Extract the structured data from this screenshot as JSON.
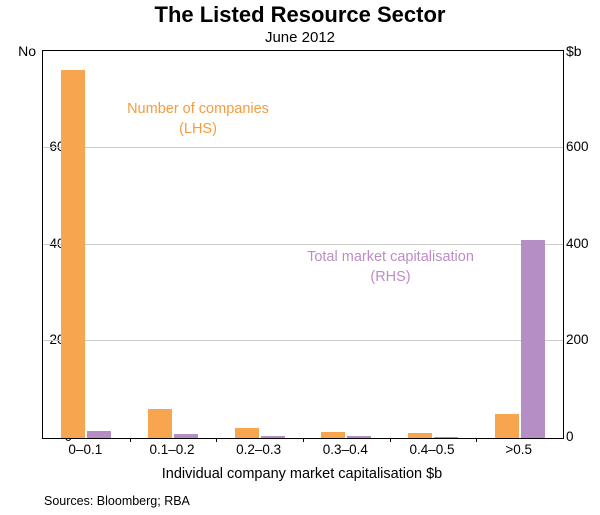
{
  "title": "The Listed Resource Sector",
  "subtitle": "June 2012",
  "left_axis_unit": "No",
  "right_axis_unit": "$b",
  "xlabel": "Individual company market capitalisation $b",
  "sources": "Sources: Bloomberg; RBA",
  "annotations": {
    "lhs_line1": "Number of companies",
    "lhs_line2": "(LHS)",
    "rhs_line1": "Total market capitalisation",
    "rhs_line2": "(RHS)"
  },
  "colors": {
    "orange": "#f8a54f",
    "purple": "#b48ec4",
    "gridline": "#cccccc",
    "frame": "#000000"
  },
  "chart_data": {
    "type": "bar",
    "title": "The Listed Resource Sector",
    "subtitle": "June 2012",
    "categories": [
      "0–0.1",
      "0.1–0.2",
      "0.2–0.3",
      "0.3–0.4",
      "0.4–0.5",
      ">0.5"
    ],
    "series": [
      {
        "name": "Number of companies (LHS)",
        "axis": "left",
        "unit": "No",
        "color": "#f8a54f",
        "values": [
          760,
          60,
          20,
          12,
          10,
          50
        ]
      },
      {
        "name": "Total market capitalisation (RHS)",
        "axis": "right",
        "unit": "$b",
        "color": "#b48ec4",
        "values": [
          15,
          8,
          5,
          4,
          3,
          410
        ]
      }
    ],
    "xlabel": "Individual company market capitalisation $b",
    "ylim": [
      0,
      800
    ],
    "yticks": [
      0,
      200,
      400,
      600
    ],
    "grid": true,
    "legend_position": "in-plot annotations"
  }
}
